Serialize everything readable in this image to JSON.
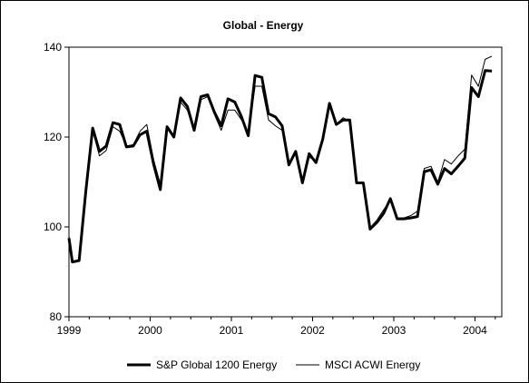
{
  "chart_data": {
    "type": "line",
    "title": "Global - Energy",
    "xlabel": "",
    "ylabel": "",
    "x_ticks": [
      "1999",
      "2000",
      "2001",
      "2002",
      "2003",
      "2004"
    ],
    "xlim": [
      1999.0,
      2004.33
    ],
    "ylim": [
      80,
      140
    ],
    "y_ticks": [
      80,
      100,
      120,
      140
    ],
    "grid": false,
    "legend_position": "bottom",
    "x": [
      1999.0,
      1999.042,
      1999.125,
      1999.208,
      1999.292,
      1999.375,
      1999.458,
      1999.542,
      1999.625,
      1999.708,
      1999.792,
      1999.875,
      1999.958,
      2000.042,
      2000.125,
      2000.208,
      2000.292,
      2000.375,
      2000.458,
      2000.542,
      2000.625,
      2000.708,
      2000.792,
      2000.875,
      2000.958,
      2001.042,
      2001.125,
      2001.208,
      2001.292,
      2001.375,
      2001.458,
      2001.542,
      2001.625,
      2001.708,
      2001.792,
      2001.875,
      2001.958,
      2002.042,
      2002.125,
      2002.208,
      2002.292,
      2002.375,
      2002.458,
      2002.542,
      2002.625,
      2002.708,
      2002.792,
      2002.875,
      2002.958,
      2003.042,
      2003.125,
      2003.208,
      2003.292,
      2003.375,
      2003.458,
      2003.542,
      2003.625,
      2003.708,
      2003.792,
      2003.875,
      2003.958,
      2004.042,
      2004.125,
      2004.208
    ],
    "series": [
      {
        "name": "S&P Global 1200 Energy",
        "color": "#000000",
        "width": 3,
        "values": [
          97.5,
          92.2,
          92.5,
          108.0,
          122.0,
          116.8,
          118.0,
          123.2,
          122.8,
          117.8,
          118.0,
          120.5,
          121.3,
          114.0,
          108.3,
          122.3,
          120.0,
          128.7,
          126.8,
          121.5,
          129.0,
          129.4,
          125.5,
          122.5,
          128.5,
          127.8,
          124.5,
          120.3,
          133.7,
          133.3,
          125.2,
          124.5,
          122.5,
          113.8,
          116.8,
          109.8,
          116.3,
          114.3,
          119.5,
          127.5,
          122.8,
          123.8,
          123.8,
          109.8,
          109.8,
          99.5,
          101.0,
          103.0,
          106.3,
          101.8,
          101.8,
          102.0,
          102.3,
          112.3,
          112.7,
          109.5,
          113.0,
          111.8,
          113.5,
          115.3,
          131.0,
          129.0,
          134.8,
          134.7
        ]
      },
      {
        "name": "MSCI ACWI Energy",
        "color": "#000000",
        "width": 1,
        "values": [
          98.0,
          92.0,
          92.8,
          107.0,
          121.5,
          115.8,
          117.0,
          122.3,
          121.3,
          118.0,
          118.3,
          121.3,
          122.8,
          115.0,
          109.5,
          122.0,
          120.3,
          127.8,
          126.0,
          121.8,
          128.3,
          129.0,
          125.0,
          121.5,
          126.0,
          126.0,
          123.8,
          120.8,
          131.3,
          131.3,
          123.8,
          122.5,
          121.5,
          114.3,
          116.3,
          110.0,
          115.5,
          114.8,
          119.8,
          127.0,
          122.8,
          124.3,
          123.5,
          110.0,
          110.0,
          99.8,
          101.5,
          103.8,
          106.0,
          102.0,
          102.0,
          102.5,
          103.5,
          113.0,
          113.5,
          110.0,
          115.0,
          114.0,
          115.8,
          117.3,
          133.8,
          131.3,
          137.3,
          138.0
        ]
      }
    ]
  }
}
